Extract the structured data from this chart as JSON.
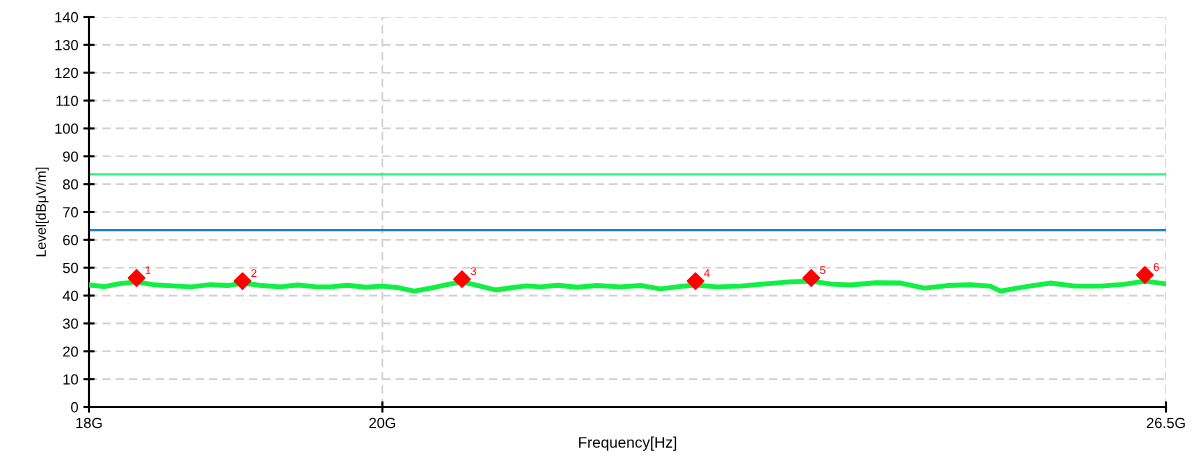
{
  "chart_data": {
    "type": "line",
    "xlabel": "Frequency[Hz]",
    "ylabel": "Level[dBμV/m]",
    "log": "x",
    "xlim": [
      18,
      26.5
    ],
    "xticks": [
      {
        "value": 18,
        "label": "18G"
      },
      {
        "value": 20,
        "label": "20G"
      },
      {
        "value": 26.5,
        "label": "26.5G"
      }
    ],
    "ylim": [
      0,
      140
    ],
    "yticks": [
      0,
      10,
      20,
      30,
      40,
      50,
      60,
      70,
      80,
      90,
      100,
      110,
      120,
      130,
      140
    ],
    "grid": true,
    "series": [
      {
        "color": "#11ee44",
        "line_style": "solid",
        "marker": "none",
        "x": [
          18.0,
          18.1,
          18.2,
          18.31,
          18.42,
          18.55,
          18.67,
          18.8,
          18.92,
          19.02,
          19.15,
          19.28,
          19.4,
          19.52,
          19.63,
          19.75,
          19.88,
          20.0,
          20.12,
          20.23,
          20.35,
          20.47,
          20.58,
          20.7,
          20.83,
          20.95,
          21.06,
          21.17,
          21.3,
          21.45,
          21.6,
          21.78,
          21.95,
          22.1,
          22.25,
          22.38,
          22.55,
          22.74,
          22.95,
          23.15,
          23.33,
          23.5,
          23.66,
          23.88,
          24.09,
          24.3,
          24.5,
          24.7,
          24.88,
          24.97,
          25.2,
          25.42,
          25.65,
          25.88,
          26.1,
          26.3,
          26.5
        ],
        "values": [
          43.8,
          43.2,
          44.3,
          44.9,
          43.9,
          43.5,
          43.1,
          43.9,
          43.6,
          44.5,
          43.6,
          43.1,
          43.8,
          43.2,
          43.1,
          43.7,
          43.0,
          43.4,
          42.8,
          41.6,
          42.7,
          43.9,
          44.9,
          43.6,
          42.0,
          42.8,
          43.5,
          43.1,
          43.7,
          43.0,
          43.6,
          43.1,
          43.6,
          42.4,
          43.2,
          43.8,
          43.1,
          43.4,
          44.2,
          44.9,
          45.2,
          44.1,
          43.8,
          44.6,
          44.5,
          42.7,
          43.6,
          43.9,
          43.4,
          41.6,
          43.2,
          44.5,
          43.4,
          43.4,
          44.0,
          45.2,
          44.2
        ]
      },
      {
        "type": "scatter",
        "color": "#ff0000",
        "marker": "diamond",
        "x": [
          18.31,
          19.02,
          20.58,
          22.38,
          23.33,
          26.3
        ],
        "values": [
          46.3,
          45.2,
          45.9,
          45.2,
          46.3,
          47.4
        ]
      }
    ],
    "ref_lines": [
      {
        "axis": "y",
        "value": 83.5,
        "label": null,
        "color": "#33ee88",
        "line_style": "solid"
      },
      {
        "axis": "y",
        "value": 63.5,
        "label": null,
        "color": "#1a7fc8",
        "line_style": "solid"
      }
    ],
    "annotations": [
      {
        "text": "1",
        "x": 18.31,
        "y": 46.3
      },
      {
        "text": "2",
        "x": 19.02,
        "y": 45.2
      },
      {
        "text": "3",
        "x": 20.58,
        "y": 45.9
      },
      {
        "text": "4",
        "x": 22.38,
        "y": 45.2
      },
      {
        "text": "5",
        "x": 23.33,
        "y": 46.3
      },
      {
        "text": "6",
        "x": 26.3,
        "y": 47.4
      }
    ]
  }
}
